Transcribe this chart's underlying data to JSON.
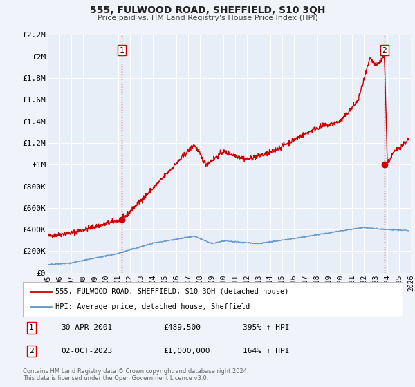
{
  "title": "555, FULWOOD ROAD, SHEFFIELD, S10 3QH",
  "subtitle": "Price paid vs. HM Land Registry's House Price Index (HPI)",
  "background_color": "#f0f4fa",
  "plot_bg_color": "#e8eef8",
  "grid_color": "#ffffff",
  "red_line_color": "#cc0000",
  "blue_line_color": "#6699cc",
  "ylim": [
    0,
    2200000
  ],
  "xlim_start": 1995,
  "xlim_end": 2026,
  "yticks": [
    0,
    200000,
    400000,
    600000,
    800000,
    1000000,
    1200000,
    1400000,
    1600000,
    1800000,
    2000000,
    2200000
  ],
  "ytick_labels": [
    "£0",
    "£200K",
    "£400K",
    "£600K",
    "£800K",
    "£1M",
    "£1.2M",
    "£1.4M",
    "£1.6M",
    "£1.8M",
    "£2M",
    "£2.2M"
  ],
  "sale1_x": 2001.33,
  "sale1_y": 489500,
  "sale1_label": "1",
  "sale1_date": "30-APR-2001",
  "sale1_price": "£489,500",
  "sale1_hpi": "395% ↑ HPI",
  "sale2_x": 2023.75,
  "sale2_y": 1000000,
  "sale2_label": "2",
  "sale2_date": "02-OCT-2023",
  "sale2_price": "£1,000,000",
  "sale2_hpi": "164% ↑ HPI",
  "legend_label1": "555, FULWOOD ROAD, SHEFFIELD, S10 3QH (detached house)",
  "legend_label2": "HPI: Average price, detached house, Sheffield",
  "footer_line1": "Contains HM Land Registry data © Crown copyright and database right 2024.",
  "footer_line2": "This data is licensed under the Open Government Licence v3.0."
}
